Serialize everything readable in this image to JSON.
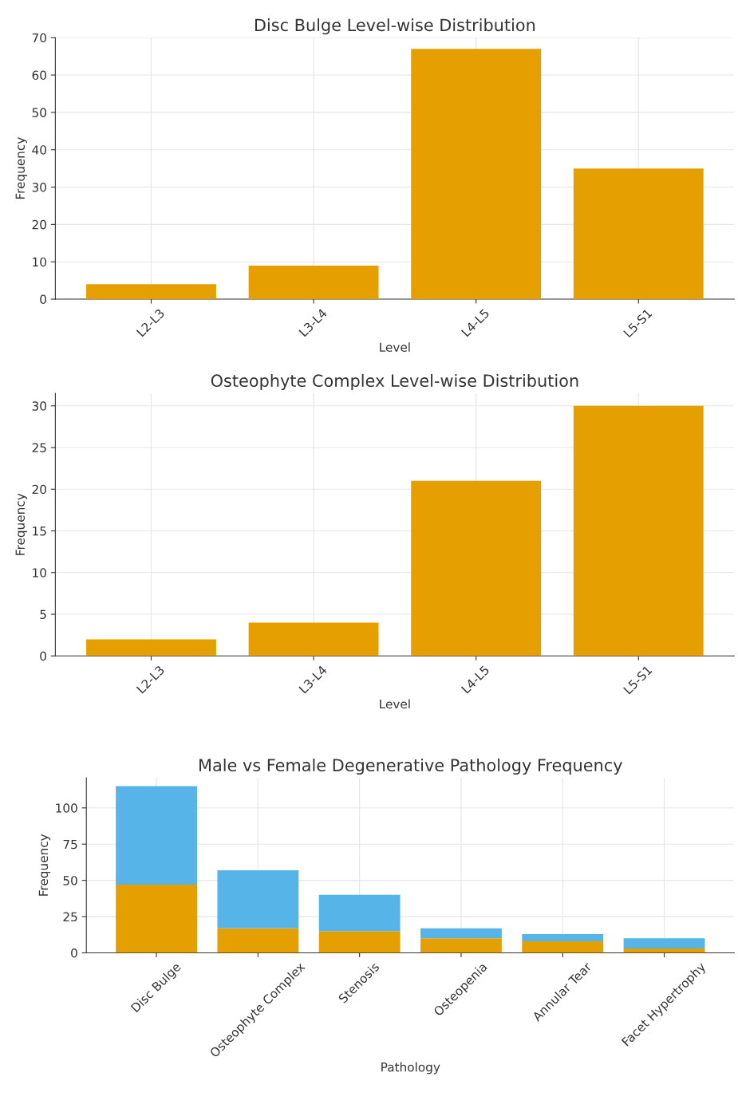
{
  "chart_data": [
    {
      "type": "bar",
      "title": "Disc Bulge Level-wise Distribution",
      "xlabel": "Level",
      "ylabel": "Frequency",
      "categories": [
        "L2-L3",
        "L3-L4",
        "L4-L5",
        "L5-S1"
      ],
      "values": [
        4,
        9,
        67,
        35
      ],
      "color": "#e69f00",
      "ylim": [
        0,
        70
      ],
      "yticks": [
        0,
        10,
        20,
        30,
        40,
        50,
        60,
        70
      ],
      "grid": true
    },
    {
      "type": "bar",
      "title": "Osteophyte Complex Level-wise Distribution",
      "xlabel": "Level",
      "ylabel": "Frequency",
      "categories": [
        "L2-L3",
        "L3-L4",
        "L4-L5",
        "L5-S1"
      ],
      "values": [
        2,
        4,
        21,
        30
      ],
      "color": "#e69f00",
      "ylim": [
        0,
        31.5
      ],
      "yticks": [
        0,
        5,
        10,
        15,
        20,
        25,
        30
      ],
      "grid": true
    },
    {
      "type": "bar",
      "title": "Male vs Female Degenerative Pathology Frequency",
      "xlabel": "Pathology",
      "ylabel": "Frequency",
      "categories": [
        "Disc Bulge",
        "Osteophyte Complex",
        "Stenosis",
        "Osteopenia",
        "Annular Tear",
        "Facet Hypertrophy"
      ],
      "stacked": true,
      "series": [
        {
          "color": "#e69f00",
          "values": [
            47,
            17,
            15,
            10,
            8,
            3
          ]
        },
        {
          "color": "#56b4e9",
          "values": [
            68,
            40,
            25,
            7,
            5,
            7
          ]
        }
      ],
      "ylim": [
        0,
        120.75
      ],
      "yticks": [
        0,
        25,
        50,
        75,
        100
      ],
      "grid": true
    }
  ]
}
